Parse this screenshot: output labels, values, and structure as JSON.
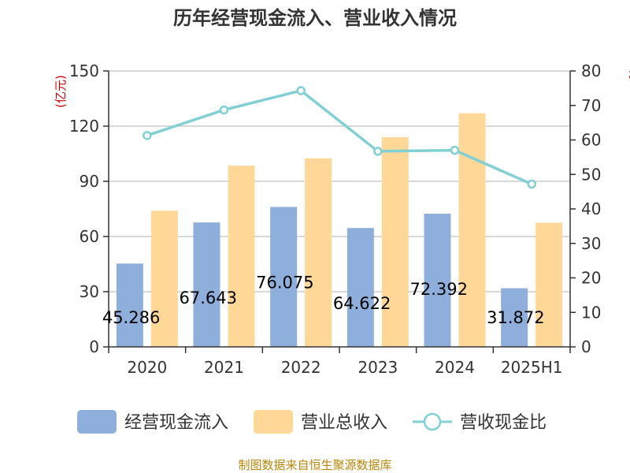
{
  "chart_data": {
    "type": "bar",
    "title": "历年经营现金流入、营业收入情况",
    "categories": [
      "2020",
      "2021",
      "2022",
      "2023",
      "2024",
      "2025H1"
    ],
    "series": [
      {
        "name": "经营现金流入",
        "type": "bar",
        "axis": "left",
        "color": "#8eaedb",
        "values": [
          45.286,
          67.643,
          76.075,
          64.622,
          72.392,
          31.872
        ]
      },
      {
        "name": "营业总收入",
        "type": "bar",
        "axis": "left",
        "color": "#ffd898",
        "values": [
          74.0,
          98.5,
          102.5,
          114.0,
          127.0,
          67.5
        ]
      },
      {
        "name": "营收现金比",
        "type": "line",
        "axis": "right",
        "color": "#80d0d4",
        "values": [
          61.3,
          68.7,
          74.3,
          56.7,
          57.0,
          47.2
        ]
      }
    ],
    "data_labels": [
      "45.286",
      "67.643",
      "76.075",
      "64.622",
      "72.392",
      "31.872"
    ],
    "y_left": {
      "label": "(亿元)",
      "ylim": [
        0,
        150
      ],
      "ticks": [
        "0",
        "30",
        "60",
        "90",
        "120",
        "150"
      ]
    },
    "y_right": {
      "label": "%",
      "ylim": [
        0,
        80
      ],
      "ticks": [
        "0",
        "10",
        "20",
        "30",
        "40",
        "50",
        "60",
        "70",
        "80"
      ]
    },
    "grid": true,
    "legend_position": "bottom"
  },
  "source": "制图数据来自恒生聚源数据库"
}
